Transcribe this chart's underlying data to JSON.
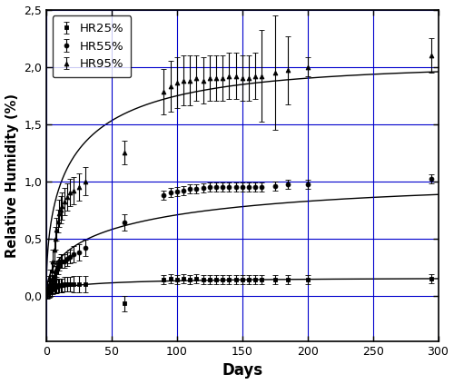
{
  "title": "",
  "xlabel": "Days",
  "ylabel": "Relative Humidity (%)",
  "xlim": [
    0,
    300
  ],
  "ylim": [
    -0.4,
    2.5
  ],
  "yticks": [
    0.0,
    0.5,
    1.0,
    1.5,
    2.0,
    2.5
  ],
  "xticks": [
    0,
    50,
    100,
    150,
    200,
    250,
    300
  ],
  "legend": [
    "HR25%",
    "HR55%",
    "HR95%"
  ],
  "background_color": "#ffffff",
  "grid_color": "#0000cc",
  "hr25_x": [
    1,
    2,
    3,
    4,
    5,
    6,
    7,
    8,
    9,
    10,
    11,
    12,
    14,
    16,
    18,
    21,
    25,
    30,
    60,
    90,
    95,
    100,
    105,
    110,
    115,
    120,
    125,
    130,
    135,
    140,
    145,
    150,
    155,
    160,
    165,
    175,
    185,
    200,
    295
  ],
  "hr25_y": [
    0.02,
    0.03,
    0.04,
    0.05,
    0.06,
    0.07,
    0.08,
    0.08,
    0.09,
    0.09,
    0.09,
    0.09,
    0.1,
    0.1,
    0.1,
    0.1,
    0.1,
    0.1,
    -0.07,
    0.14,
    0.15,
    0.14,
    0.15,
    0.14,
    0.15,
    0.14,
    0.14,
    0.14,
    0.14,
    0.14,
    0.14,
    0.14,
    0.14,
    0.14,
    0.14,
    0.14,
    0.14,
    0.14,
    0.15
  ],
  "hr25_yerr": [
    0.05,
    0.05,
    0.05,
    0.05,
    0.05,
    0.05,
    0.06,
    0.06,
    0.06,
    0.06,
    0.06,
    0.06,
    0.06,
    0.06,
    0.06,
    0.07,
    0.07,
    0.07,
    0.07,
    0.04,
    0.04,
    0.04,
    0.04,
    0.04,
    0.04,
    0.04,
    0.04,
    0.04,
    0.04,
    0.04,
    0.04,
    0.04,
    0.04,
    0.04,
    0.04,
    0.04,
    0.04,
    0.04,
    0.04
  ],
  "hr55_x": [
    1,
    2,
    3,
    4,
    5,
    6,
    7,
    8,
    9,
    10,
    11,
    12,
    14,
    16,
    18,
    21,
    25,
    30,
    60,
    90,
    95,
    100,
    105,
    110,
    115,
    120,
    125,
    130,
    135,
    140,
    145,
    150,
    155,
    160,
    165,
    175,
    185,
    200,
    295
  ],
  "hr55_y": [
    0.03,
    0.05,
    0.07,
    0.1,
    0.13,
    0.16,
    0.2,
    0.22,
    0.25,
    0.28,
    0.3,
    0.3,
    0.3,
    0.32,
    0.34,
    0.36,
    0.38,
    0.42,
    0.64,
    0.88,
    0.9,
    0.91,
    0.92,
    0.93,
    0.93,
    0.94,
    0.95,
    0.95,
    0.95,
    0.95,
    0.95,
    0.95,
    0.95,
    0.95,
    0.95,
    0.96,
    0.97,
    0.97,
    1.02
  ],
  "hr55_yerr": [
    0.05,
    0.05,
    0.05,
    0.05,
    0.05,
    0.05,
    0.06,
    0.06,
    0.06,
    0.06,
    0.06,
    0.06,
    0.06,
    0.06,
    0.06,
    0.07,
    0.07,
    0.07,
    0.07,
    0.04,
    0.04,
    0.04,
    0.04,
    0.04,
    0.04,
    0.04,
    0.04,
    0.04,
    0.04,
    0.04,
    0.04,
    0.04,
    0.04,
    0.04,
    0.04,
    0.04,
    0.04,
    0.04,
    0.04
  ],
  "hr95_x": [
    1,
    2,
    3,
    4,
    5,
    6,
    7,
    8,
    9,
    10,
    11,
    12,
    14,
    16,
    18,
    21,
    25,
    30,
    60,
    90,
    95,
    100,
    105,
    110,
    115,
    120,
    125,
    130,
    135,
    140,
    145,
    150,
    155,
    160,
    165,
    175,
    185,
    200,
    295
  ],
  "hr95_y": [
    0.05,
    0.1,
    0.15,
    0.22,
    0.3,
    0.4,
    0.5,
    0.58,
    0.65,
    0.72,
    0.75,
    0.78,
    0.82,
    0.86,
    0.9,
    0.92,
    0.95,
    1.0,
    1.25,
    1.78,
    1.83,
    1.86,
    1.88,
    1.88,
    1.9,
    1.88,
    1.9,
    1.9,
    1.9,
    1.92,
    1.92,
    1.9,
    1.9,
    1.92,
    1.92,
    1.95,
    1.97,
    2.0,
    2.1
  ],
  "hr95_yerr": [
    0.07,
    0.07,
    0.08,
    0.08,
    0.1,
    0.1,
    0.1,
    0.1,
    0.1,
    0.12,
    0.12,
    0.12,
    0.12,
    0.12,
    0.12,
    0.12,
    0.12,
    0.12,
    0.1,
    0.2,
    0.22,
    0.22,
    0.22,
    0.22,
    0.2,
    0.2,
    0.2,
    0.2,
    0.2,
    0.2,
    0.2,
    0.2,
    0.2,
    0.2,
    0.4,
    0.5,
    0.3,
    0.08,
    0.15
  ],
  "fit_Minf25": 0.155,
  "fit_k25": 0.18,
  "fit_Minf55": 1.01,
  "fit_k55": 0.12,
  "fit_Minf95": 2.02,
  "fit_k95": 0.2
}
